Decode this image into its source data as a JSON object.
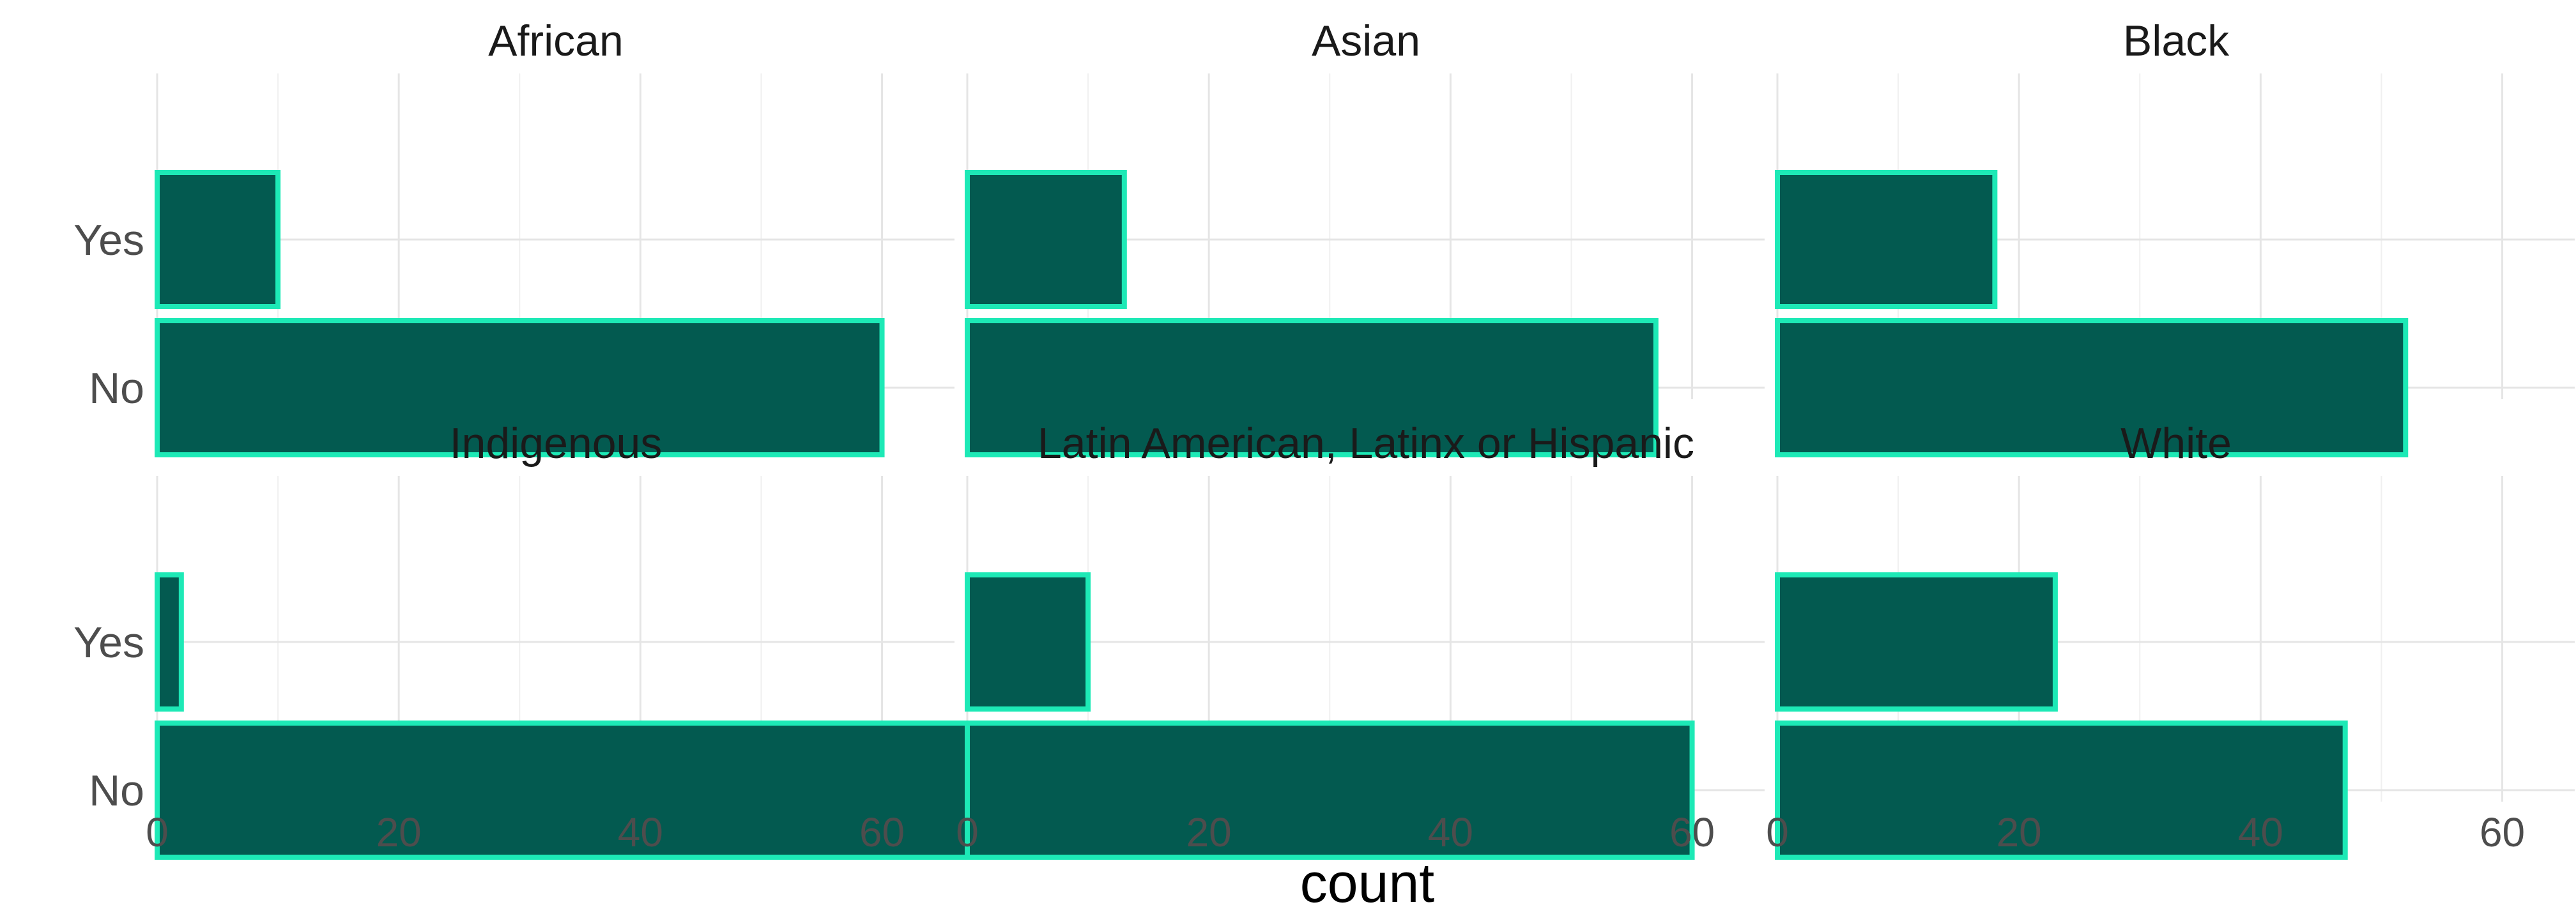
{
  "chart_data": {
    "type": "bar",
    "orientation": "horizontal",
    "facet_layout": "2x3",
    "xlabel": "count",
    "ylabel": "",
    "xlim": [
      0,
      66
    ],
    "x_ticks": [
      0,
      20,
      40,
      60
    ],
    "categories": [
      "Yes",
      "No"
    ],
    "bar_fill": "#035a50",
    "bar_outline": "#1de9b6",
    "grid": true,
    "legend": "none",
    "facets": [
      {
        "title": "African",
        "values": [
          10,
          60
        ]
      },
      {
        "title": "Asian",
        "values": [
          13,
          57
        ]
      },
      {
        "title": "Black",
        "values": [
          18,
          52
        ]
      },
      {
        "title": "Indigenous",
        "values": [
          2,
          68
        ]
      },
      {
        "title": "Latin American, Latinx or Hispanic",
        "values": [
          10,
          60
        ]
      },
      {
        "title": "White",
        "values": [
          23,
          47
        ]
      }
    ]
  }
}
